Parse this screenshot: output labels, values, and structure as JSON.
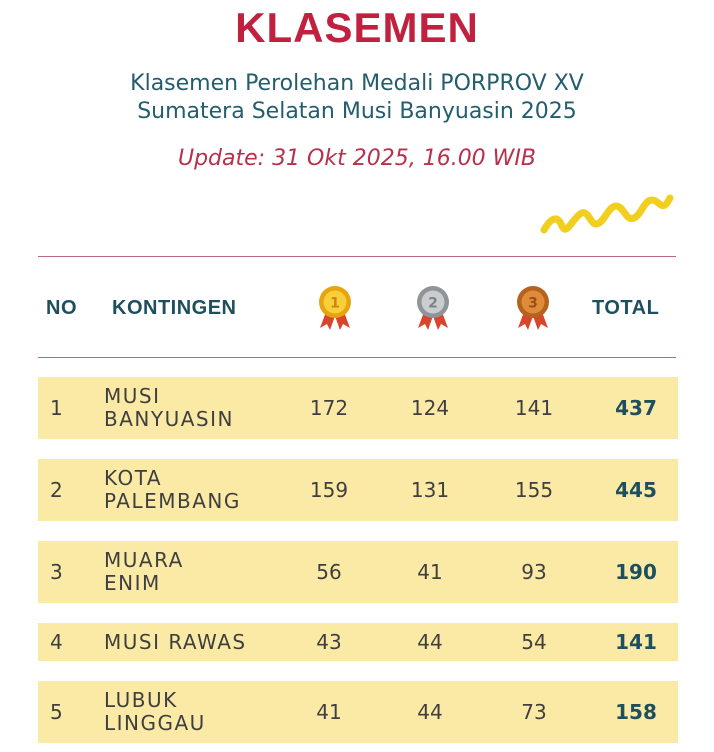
{
  "header": {
    "title": "KLASEMEN",
    "subtitle_line1": "Klasemen Perolehan Medali PORPROV XV",
    "subtitle_line2": "Sumatera Selatan Musi Banyuasin 2025",
    "update": "Update: 31 Okt 2025, 16.00 WIB"
  },
  "table": {
    "columns": {
      "no": "NO",
      "kontingen": "KONTINGEN",
      "gold_icon": "gold-medal-icon",
      "silver_icon": "silver-medal-icon",
      "bronze_icon": "bronze-medal-icon",
      "total": "TOTAL"
    },
    "rows": [
      {
        "no": "1",
        "name_line1": "MUSI",
        "name_line2": "BANYUASIN",
        "gold": "172",
        "silver": "124",
        "bronze": "141",
        "total": "437"
      },
      {
        "no": "2",
        "name_line1": "KOTA",
        "name_line2": "PALEMBANG",
        "gold": "159",
        "silver": "131",
        "bronze": "155",
        "total": "445"
      },
      {
        "no": "3",
        "name_line1": "MUARA",
        "name_line2": "ENIM",
        "gold": "56",
        "silver": "41",
        "bronze": "93",
        "total": "190"
      },
      {
        "no": "4",
        "name_line1": "MUSI RAWAS",
        "name_line2": "",
        "gold": "43",
        "silver": "44",
        "bronze": "54",
        "total": "141"
      },
      {
        "no": "5",
        "name_line1": "LUBUK",
        "name_line2": "LINGGAU",
        "gold": "41",
        "silver": "44",
        "bronze": "73",
        "total": "158"
      }
    ]
  },
  "colors": {
    "title": "#c0213f",
    "subtitle": "#235d6e",
    "update": "#b8304a",
    "row_background": "#fbeaa6",
    "header_text": "#1d4f5e",
    "squiggle": "#f2cf1f"
  }
}
